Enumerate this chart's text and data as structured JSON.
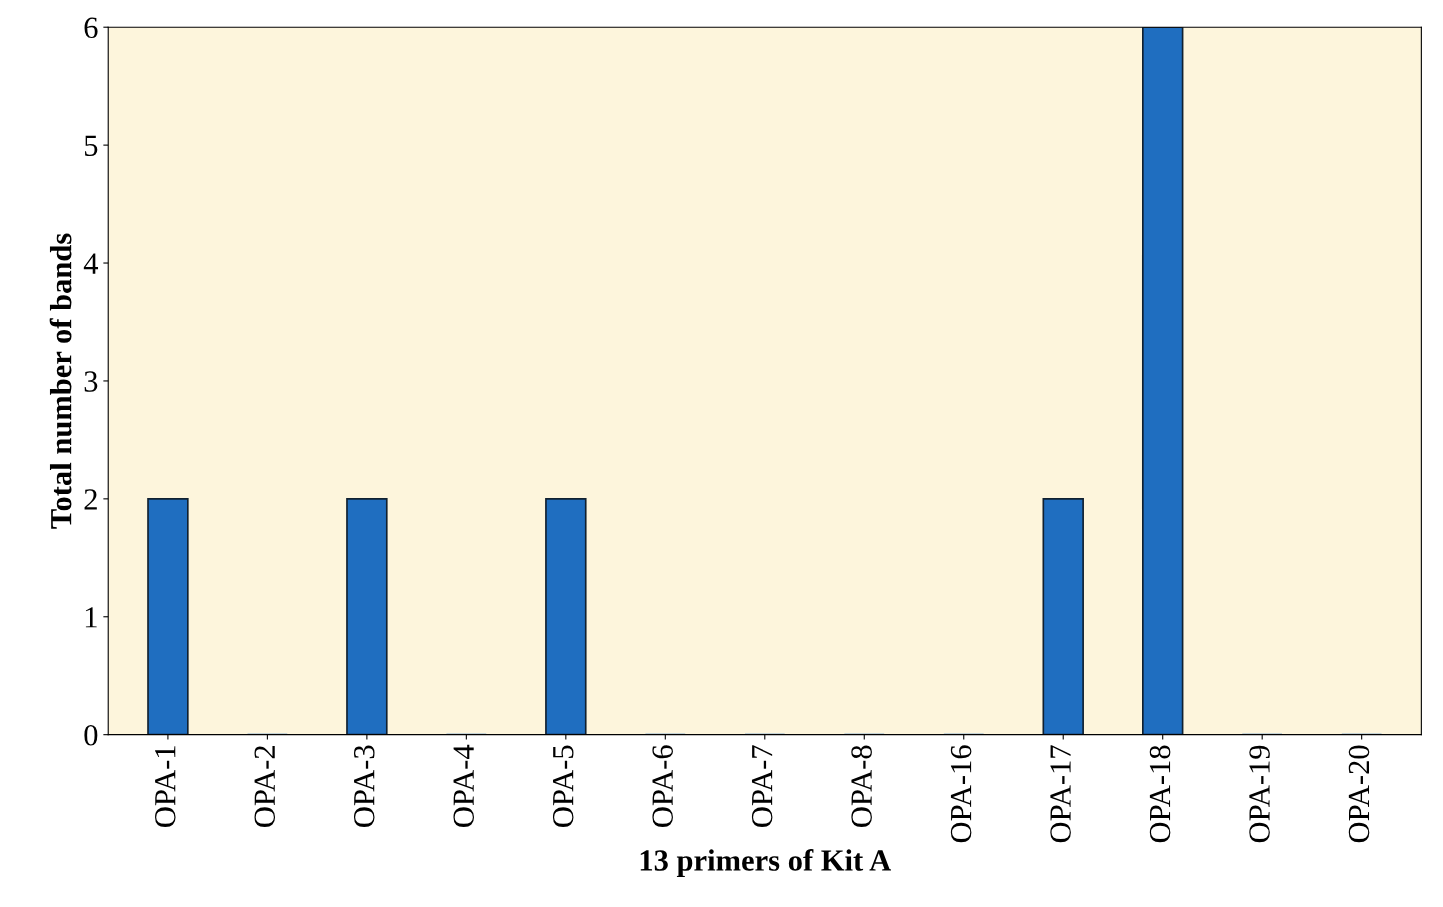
{
  "chart_data": {
    "type": "bar",
    "xlabel": "13 primers of Kit A",
    "ylabel": "Total number of bands",
    "categories": [
      "OPA-1",
      "OPA-2",
      "OPA-3",
      "OPA-4",
      "OPA-5",
      "OPA-6",
      "OPA-7",
      "OPA-8",
      "OPA-16",
      "OPA-17",
      "OPA-18",
      "OPA-19",
      "OPA-20"
    ],
    "values": [
      2,
      0,
      2,
      0,
      2,
      0,
      0,
      0,
      0,
      2,
      6,
      0,
      0
    ],
    "color": "#1f6ec0",
    "ylim": [
      0,
      6
    ],
    "yticks": [
      0,
      1,
      2,
      3,
      4,
      5,
      6
    ],
    "grid": false
  }
}
